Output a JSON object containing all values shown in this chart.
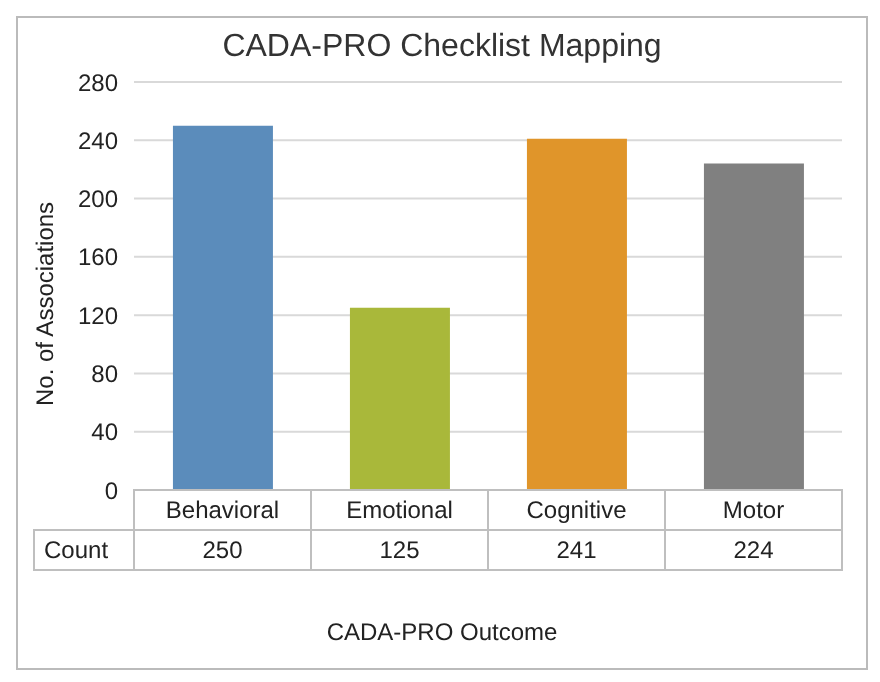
{
  "chart_data": {
    "type": "bar",
    "title": "CADA-PRO Checklist Mapping",
    "xlabel": "CADA-PRO Outcome",
    "ylabel": "No. of Associations",
    "categories": [
      "Behavioral",
      "Emotional",
      "Cognitive",
      "Motor"
    ],
    "series": [
      {
        "name": "Count",
        "values": [
          250,
          125,
          241,
          224
        ],
        "colors": [
          "#5b8cbb",
          "#a9b83a",
          "#e0952a",
          "#808080"
        ]
      }
    ],
    "ylim": [
      0,
      280
    ],
    "yticks": [
      0,
      40,
      80,
      120,
      160,
      200,
      240,
      280
    ],
    "grid": "y",
    "data_labels": true
  }
}
